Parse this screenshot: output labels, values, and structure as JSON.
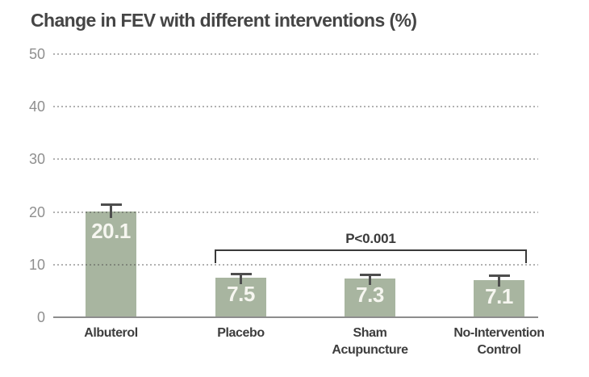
{
  "title": "Change in FEV with different interventions (%)",
  "colors": {
    "bar": "#a8b5a0",
    "bar_value_text": "#f6f6f0",
    "error_bar": "#4e4e4e",
    "bracket": "#3a3a3a",
    "gridline": "#b4b4b4",
    "baseline": "#8d8d8d",
    "ytick_label": "#8f8f8f",
    "category_label": "#3d3d3d",
    "title_text": "#454545"
  },
  "chart_data": {
    "type": "bar",
    "title": "Change in FEV with different interventions (%)",
    "categories": [
      "Albuterol",
      "Placebo",
      "Sham Acupuncture",
      "No-Intervention Control"
    ],
    "category_lines": [
      [
        "Albuterol"
      ],
      [
        "Placebo"
      ],
      [
        "Sham",
        "Acupuncture"
      ],
      [
        "No-Intervention",
        "Control"
      ]
    ],
    "values": [
      20.1,
      7.5,
      7.3,
      7.1
    ],
    "value_labels": [
      "20.1",
      "7.5",
      "7.3",
      "7.1"
    ],
    "errors_upper": [
      1.5,
      1.0,
      1.0,
      1.0
    ],
    "xlabel": "",
    "ylabel": "",
    "ylim": [
      0,
      50
    ],
    "yticks": [
      0,
      10,
      20,
      30,
      40,
      50
    ],
    "grid": "horizontal-dotted",
    "legend": "none",
    "annotation": {
      "text": "P<0.001",
      "spans_from": "Placebo",
      "spans_to": "No-Intervention Control",
      "from_index": 1,
      "to_index": 3
    }
  }
}
